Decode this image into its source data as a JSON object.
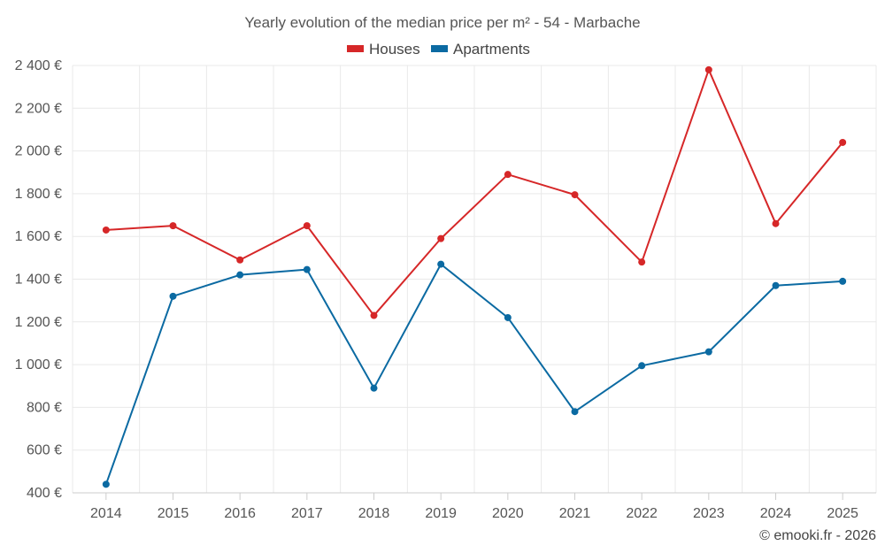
{
  "chart_data": {
    "type": "line",
    "title": "Yearly evolution of the median price per m² - 54 - Marbache",
    "categories": [
      "2014",
      "2015",
      "2016",
      "2017",
      "2018",
      "2019",
      "2020",
      "2021",
      "2022",
      "2023",
      "2024",
      "2025"
    ],
    "series": [
      {
        "name": "Houses",
        "color": "#d62728",
        "values": [
          1630,
          1650,
          1490,
          1650,
          1230,
          1590,
          1890,
          1795,
          1480,
          2380,
          1660,
          2040
        ]
      },
      {
        "name": "Apartments",
        "color": "#0b6aa2",
        "values": [
          440,
          1320,
          1420,
          1445,
          890,
          1470,
          1220,
          780,
          995,
          1060,
          1370,
          1390
        ]
      }
    ],
    "ylim": [
      400,
      2400
    ],
    "yticks": [
      400,
      600,
      800,
      1000,
      1200,
      1400,
      1600,
      1800,
      2000,
      2200,
      2400
    ],
    "ytick_labels": [
      "400 €",
      "600 €",
      "800 €",
      "1 000 €",
      "1 200 €",
      "1 400 €",
      "1 600 €",
      "1 800 €",
      "2 000 €",
      "2 200 €",
      "2 400 €"
    ],
    "xlabel": "",
    "ylabel": "",
    "grid": true,
    "legend_position": "top-center"
  },
  "credit": "© emooki.fr - 2026"
}
